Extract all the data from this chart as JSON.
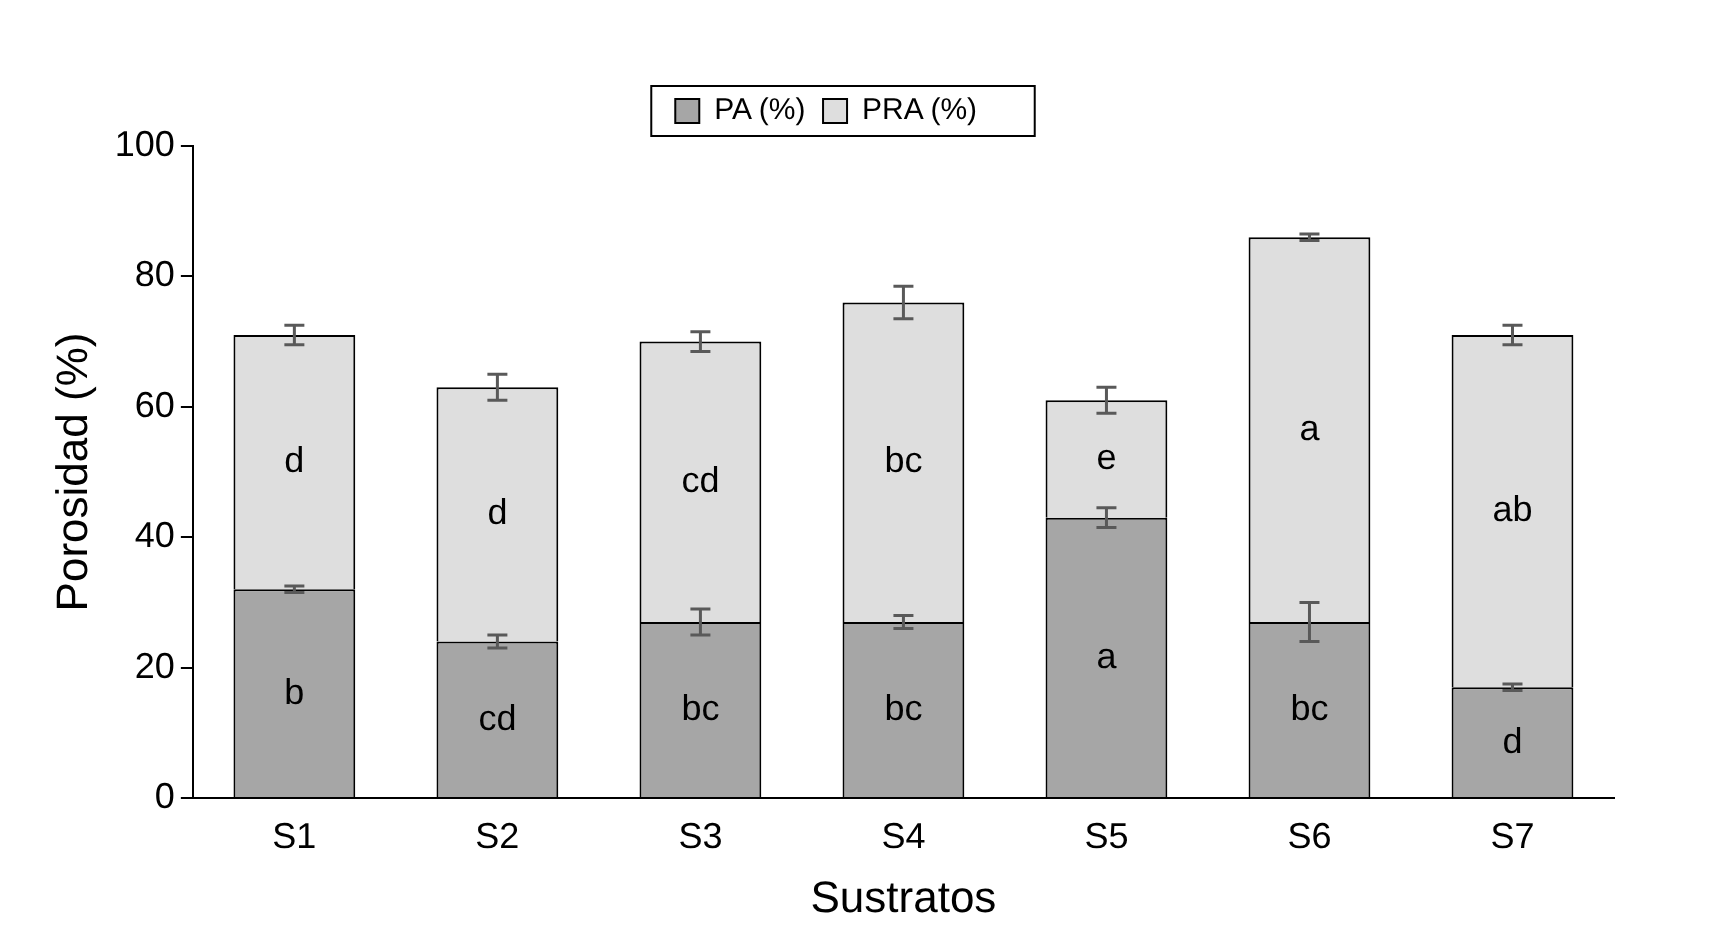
{
  "chart_data": {
    "type": "bar",
    "stacked": true,
    "xlabel": "Sustratos",
    "ylabel": "Porosidad (%)",
    "categories": [
      "S1",
      "S2",
      "S3",
      "S4",
      "S5",
      "S6",
      "S7"
    ],
    "series": [
      {
        "name": "PA (%)",
        "color": "#a6a6a6",
        "values": [
          32,
          24,
          27,
          27,
          43,
          27,
          17
        ],
        "errors": [
          0.5,
          1,
          2,
          1,
          1.5,
          3,
          0.5
        ],
        "value_labels": [
          "b",
          "cd",
          "bc",
          "bc",
          "a",
          "bc",
          "d"
        ]
      },
      {
        "name": "PRA (%)",
        "color": "#dedede",
        "values": [
          39,
          39,
          43,
          49,
          18,
          59,
          54
        ],
        "errors": [
          1.5,
          2,
          1.5,
          2.5,
          2,
          0.5,
          1.5
        ],
        "value_labels": [
          "d",
          "d",
          "cd",
          "bc",
          "e",
          "a",
          "ab"
        ]
      }
    ],
    "ylim": [
      0,
      100
    ],
    "yticks": [
      0,
      20,
      40,
      60,
      80,
      100
    ],
    "grid": false,
    "legend": "top"
  }
}
